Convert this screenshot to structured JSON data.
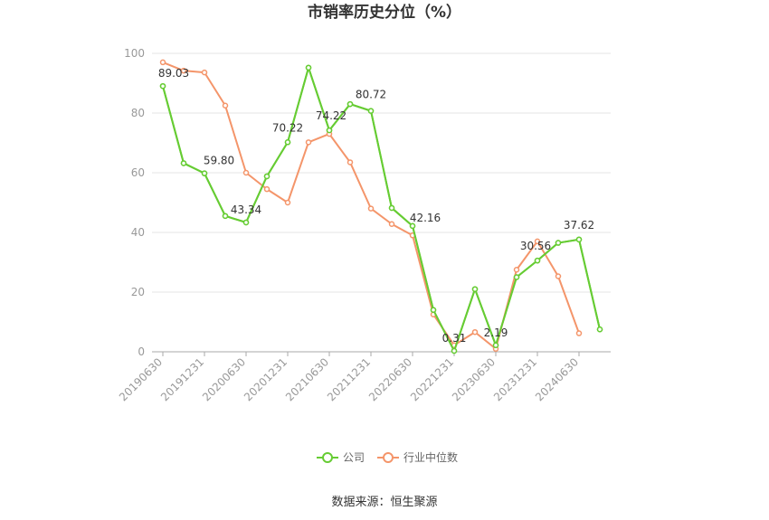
{
  "chart_data": {
    "type": "line",
    "title": "市销率历史分位（%）",
    "xlabel": "",
    "ylabel": "",
    "ylim": [
      0,
      100
    ],
    "yticks": [
      0,
      20,
      40,
      60,
      80,
      100
    ],
    "grid": true,
    "legend_position": "bottom",
    "x_tick_labels": [
      "20190630",
      "20191231",
      "20200630",
      "20201231",
      "20210630",
      "20211231",
      "20220630",
      "20221231",
      "20230630",
      "20231231",
      "20240630"
    ],
    "x": [
      "20190630",
      "20190930",
      "20191231",
      "20200331",
      "20200630",
      "20200930",
      "20201231",
      "20210331",
      "20210630",
      "20210930",
      "20211231",
      "20220331",
      "20220630",
      "20220930",
      "20221231",
      "20230331",
      "20230630",
      "20230930",
      "20231231",
      "20240331",
      "20240630",
      "20240930"
    ],
    "series": [
      {
        "name": "公司",
        "color": "#66cc33",
        "values": [
          89.03,
          63.2,
          59.8,
          45.5,
          43.34,
          58.8,
          70.22,
          95.2,
          74.22,
          83.0,
          80.72,
          48.2,
          42.16,
          14.0,
          0.31,
          21.0,
          2.19,
          25.0,
          30.56,
          36.5,
          37.62,
          7.5
        ],
        "labels": {
          "0": "89.03",
          "2": "59.80",
          "4": "43.34",
          "6": "70.22",
          "8": "74.22",
          "10": "80.72",
          "12": "42.16",
          "14": "0.31",
          "16": "2.19",
          "18": "30.56",
          "20": "37.62"
        }
      },
      {
        "name": "行业中位数",
        "color": "#f4956a",
        "values": [
          97.0,
          94.2,
          93.6,
          82.5,
          60.0,
          54.5,
          50.0,
          70.2,
          73.0,
          63.5,
          48.0,
          42.8,
          39.0,
          12.5,
          2.2,
          6.6,
          1.0,
          27.5,
          37.0,
          25.3,
          6.2,
          null
        ]
      }
    ]
  },
  "source": "数据来源：恒生聚源"
}
